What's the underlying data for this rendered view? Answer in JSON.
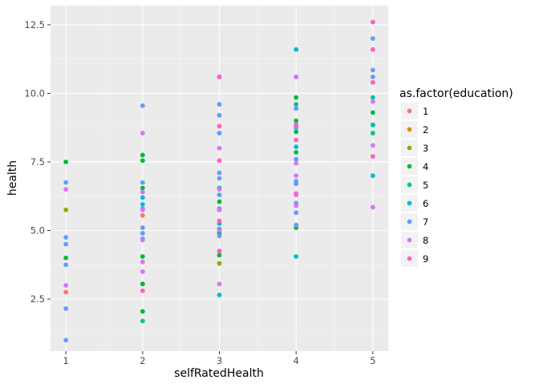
{
  "chart_data": {
    "type": "scatter",
    "title": "",
    "xlabel": "selfRatedHealth",
    "ylabel": "health",
    "xlim": [
      0.8,
      5.2
    ],
    "ylim": [
      0.6,
      13.2
    ],
    "x_ticks": [
      1,
      2,
      3,
      4,
      5
    ],
    "y_ticks": [
      2.5,
      5.0,
      7.5,
      10.0,
      12.5
    ],
    "y_tick_labels": [
      "2.5",
      "5.0",
      "7.5",
      "10.0",
      "12.5"
    ],
    "grid": true,
    "legend": {
      "title": "as.factor(education)",
      "placement": "right",
      "entries": [
        "1",
        "2",
        "3",
        "4",
        "5",
        "6",
        "7",
        "8",
        "9"
      ]
    },
    "series": [
      {
        "name": "1",
        "color": "#F8766D",
        "points": [
          [
            1,
            2.75
          ],
          [
            2,
            5.55
          ]
        ]
      },
      {
        "name": "2",
        "color": "#D39200",
        "points": []
      },
      {
        "name": "3",
        "color": "#93AA00",
        "points": [
          [
            1,
            5.75
          ],
          [
            3,
            3.8
          ]
        ]
      },
      {
        "name": "4",
        "color": "#00BA38",
        "points": [
          [
            1,
            7.5
          ],
          [
            1,
            4.0
          ],
          [
            2,
            7.75
          ],
          [
            2,
            7.55
          ],
          [
            2,
            6.55
          ],
          [
            2,
            4.05
          ],
          [
            2,
            3.05
          ],
          [
            2,
            2.05
          ],
          [
            3,
            6.05
          ],
          [
            3,
            4.1
          ],
          [
            3,
            4.9
          ],
          [
            4,
            9.85
          ],
          [
            4,
            9.0
          ],
          [
            4,
            8.6
          ],
          [
            4,
            7.85
          ],
          [
            4,
            5.1
          ],
          [
            5,
            9.3
          ],
          [
            5,
            8.85
          ]
        ]
      },
      {
        "name": "5",
        "color": "#00C19F",
        "points": [
          [
            2,
            1.7
          ],
          [
            3,
            5.05
          ],
          [
            3,
            6.55
          ],
          [
            4,
            11.6
          ],
          [
            4,
            9.6
          ],
          [
            5,
            9.85
          ],
          [
            5,
            8.55
          ],
          [
            5,
            8.85
          ]
        ]
      },
      {
        "name": "6",
        "color": "#00B9E3",
        "points": [
          [
            2,
            6.2
          ],
          [
            2,
            5.95
          ],
          [
            3,
            2.65
          ],
          [
            3,
            5.25
          ],
          [
            4,
            11.6
          ],
          [
            4,
            4.05
          ],
          [
            4,
            8.05
          ],
          [
            5,
            7.0
          ]
        ]
      },
      {
        "name": "7",
        "color": "#619CFF",
        "points": [
          [
            1,
            6.75
          ],
          [
            1,
            4.75
          ],
          [
            1,
            4.5
          ],
          [
            1,
            3.75
          ],
          [
            1,
            2.15
          ],
          [
            1,
            1.0
          ],
          [
            2,
            9.55
          ],
          [
            2,
            6.75
          ],
          [
            2,
            5.8
          ],
          [
            2,
            5.1
          ],
          [
            2,
            4.9
          ],
          [
            2,
            4.7
          ],
          [
            3,
            9.6
          ],
          [
            3,
            9.2
          ],
          [
            3,
            8.55
          ],
          [
            3,
            7.1
          ],
          [
            3,
            6.9
          ],
          [
            3,
            6.3
          ],
          [
            3,
            5.8
          ],
          [
            3,
            4.8
          ],
          [
            4,
            10.6
          ],
          [
            4,
            9.45
          ],
          [
            4,
            8.75
          ],
          [
            4,
            7.6
          ],
          [
            4,
            6.8
          ],
          [
            4,
            6.7
          ],
          [
            4,
            6.0
          ],
          [
            4,
            5.65
          ],
          [
            4,
            5.2
          ],
          [
            5,
            12.0
          ],
          [
            5,
            10.85
          ],
          [
            5,
            10.6
          ]
        ]
      },
      {
        "name": "8",
        "color": "#DB72FB",
        "points": [
          [
            1,
            6.5
          ],
          [
            1,
            3.0
          ],
          [
            2,
            8.55
          ],
          [
            2,
            6.4
          ],
          [
            2,
            5.75
          ],
          [
            2,
            4.65
          ],
          [
            2,
            3.85
          ],
          [
            2,
            3.5
          ],
          [
            3,
            10.6
          ],
          [
            3,
            8.8
          ],
          [
            3,
            8.0
          ],
          [
            3,
            6.5
          ],
          [
            3,
            5.75
          ],
          [
            3,
            5.0
          ],
          [
            3,
            4.25
          ],
          [
            3,
            3.05
          ],
          [
            4,
            10.6
          ],
          [
            4,
            8.85
          ],
          [
            4,
            7.45
          ],
          [
            4,
            7.0
          ],
          [
            4,
            6.35
          ],
          [
            4,
            5.9
          ],
          [
            5,
            12.6
          ],
          [
            5,
            10.4
          ],
          [
            5,
            9.7
          ],
          [
            5,
            8.1
          ],
          [
            5,
            7.7
          ],
          [
            5,
            5.85
          ]
        ]
      },
      {
        "name": "9",
        "color": "#FF61C3",
        "points": [
          [
            2,
            2.8
          ],
          [
            3,
            10.6
          ],
          [
            3,
            8.8
          ],
          [
            3,
            7.55
          ],
          [
            3,
            5.35
          ],
          [
            3,
            4.25
          ],
          [
            4,
            8.85
          ],
          [
            4,
            8.3
          ],
          [
            4,
            6.3
          ],
          [
            5,
            12.6
          ],
          [
            5,
            11.6
          ],
          [
            5,
            10.4
          ],
          [
            5,
            7.7
          ]
        ]
      }
    ]
  }
}
